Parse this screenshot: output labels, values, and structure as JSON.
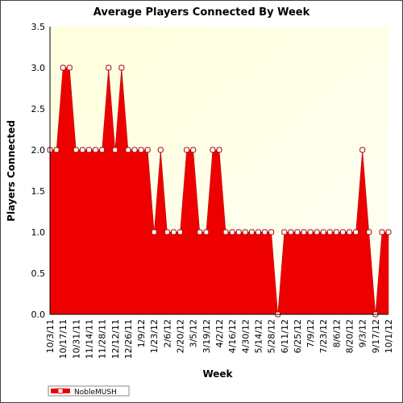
{
  "chart_data": {
    "type": "area",
    "title": "Average Players Connected By Week",
    "x_label": "Week",
    "y_label": "Players Connected",
    "categories": [
      "10/3/11",
      null,
      "10/17/11",
      null,
      "10/31/11",
      null,
      "11/14/11",
      null,
      "11/28/11",
      null,
      "12/12/11",
      null,
      "12/26/11",
      null,
      "1/9/12",
      null,
      "1/23/12",
      null,
      "2/6/12",
      null,
      "2/20/12",
      null,
      "3/5/12",
      null,
      "3/19/12",
      null,
      "4/2/12",
      null,
      "4/16/12",
      null,
      "4/30/12",
      null,
      "5/14/12",
      null,
      "5/28/12",
      null,
      "6/11/12",
      null,
      "6/25/12",
      null,
      "7/9/12",
      null,
      "7/23/12",
      null,
      "8/6/12",
      null,
      "8/20/12",
      null,
      "9/3/12",
      null,
      "9/17/12",
      null,
      "10/1/12"
    ],
    "series": [
      {
        "name": "NobleMUSH",
        "color": "#ee0000",
        "values": [
          2,
          2,
          3,
          3,
          2,
          2,
          2,
          2,
          2,
          3,
          2,
          3,
          2,
          2,
          2,
          2,
          1,
          2,
          1,
          1,
          1,
          2,
          2,
          1,
          1,
          2,
          2,
          1,
          1,
          1,
          1,
          1,
          1,
          1,
          1,
          0,
          1,
          1,
          1,
          1,
          1,
          1,
          1,
          1,
          1,
          1,
          1,
          1,
          2,
          1,
          0,
          1,
          1
        ]
      }
    ],
    "ylim": [
      0,
      3.5
    ],
    "yticks": [
      {
        "value": 0,
        "label": "0.0"
      },
      0.5,
      {
        "value": 1,
        "label": "1.0"
      },
      1.5,
      {
        "value": 2,
        "label": "2.0"
      },
      2.5,
      {
        "value": 3,
        "label": "3.0"
      },
      3.5
    ],
    "grid": true
  }
}
